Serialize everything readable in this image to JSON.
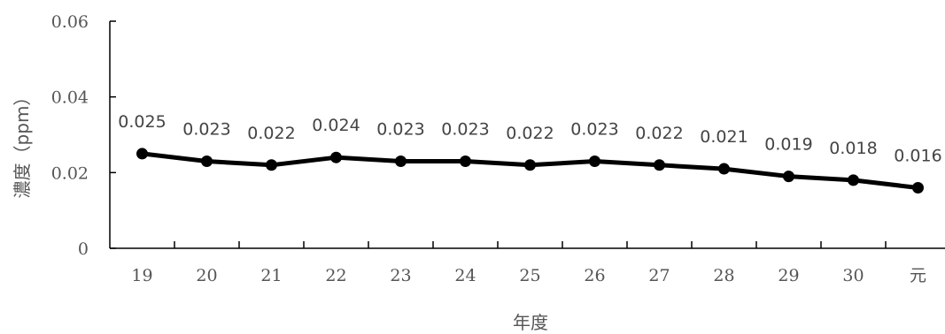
{
  "chart_data": {
    "type": "line",
    "categories": [
      "19",
      "20",
      "21",
      "22",
      "23",
      "24",
      "25",
      "26",
      "27",
      "28",
      "29",
      "30",
      "元"
    ],
    "series": [
      {
        "values": [
          0.025,
          0.023,
          0.022,
          0.024,
          0.023,
          0.023,
          0.022,
          0.023,
          0.022,
          0.021,
          0.019,
          0.018,
          0.016
        ]
      }
    ],
    "data_labels": [
      "0.025",
      "0.023",
      "0.022",
      "0.024",
      "0.023",
      "0.023",
      "0.022",
      "0.023",
      "0.022",
      "0.021",
      "0.019",
      "0.018",
      "0.016"
    ],
    "y_ticks": [
      "0",
      "0.02",
      "0.04",
      "0.06"
    ],
    "y_tick_values": [
      0,
      0.02,
      0.04,
      0.06
    ],
    "xlabel": "年度",
    "ylabel": "濃度（ppm）",
    "ylim": [
      0,
      0.06
    ],
    "grid": false,
    "legend": "none",
    "colors": {
      "line": "#000000",
      "marker": "#000000",
      "axis": "#000000"
    }
  }
}
